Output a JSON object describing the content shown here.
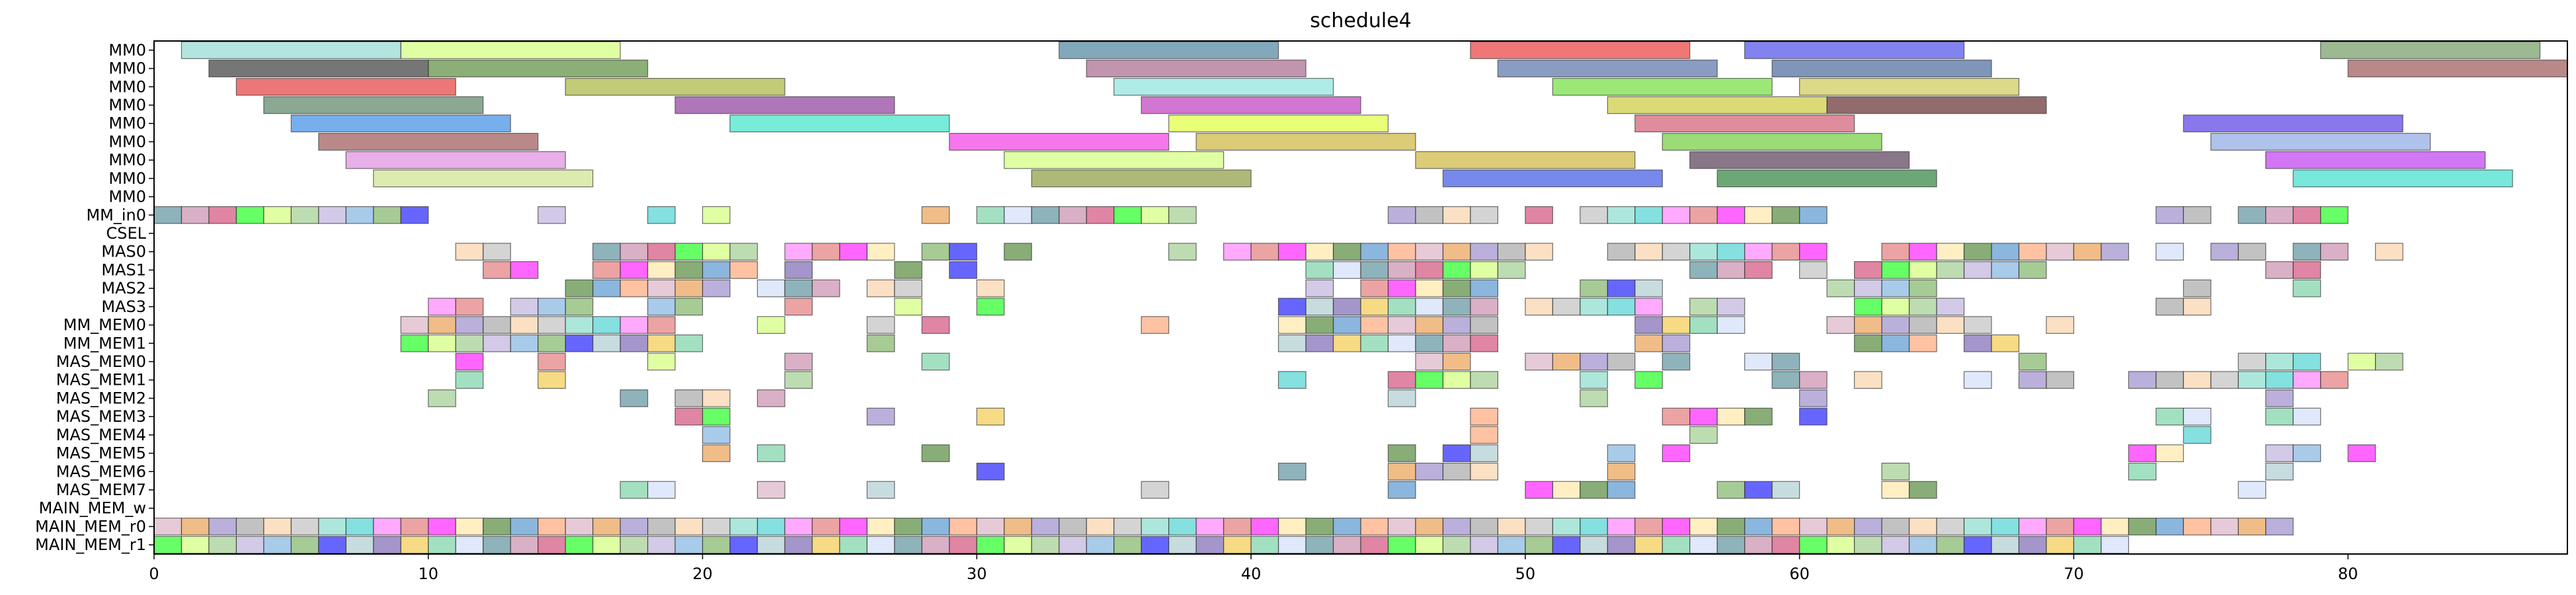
{
  "chart_data": {
    "type": "gantt",
    "title": "schedule4",
    "xlabel": "",
    "ylabel": "",
    "xlim": [
      0,
      88
    ],
    "xticks": [
      0,
      10,
      20,
      30,
      40,
      50,
      60,
      70,
      80
    ],
    "grid": false,
    "rows": [
      "MM0",
      "MM0",
      "MM0",
      "MM0",
      "MM0",
      "MM0",
      "MM0",
      "MM0",
      "MM0",
      "MM_in0",
      "CSEL",
      "MAS0",
      "MAS1",
      "MAS2",
      "MAS3",
      "MM_MEM0",
      "MM_MEM1",
      "MAS_MEM0",
      "MAS_MEM1",
      "MAS_MEM2",
      "MAS_MEM3",
      "MAS_MEM4",
      "MAS_MEM5",
      "MAS_MEM6",
      "MAS_MEM7",
      "MAIN_MEM_w",
      "MAIN_MEM_r0",
      "MAIN_MEM_r1"
    ],
    "palette": [
      "#e06666",
      "#6aa84f",
      "#3d85c6",
      "#f1c232",
      "#8e7cc3",
      "#c27ba0",
      "#76d7c4",
      "#93c47d",
      "#ff00ff",
      "#0000ff",
      "#ff9966",
      "#66cc99",
      "#999999",
      "#cc3366",
      "#33cccc",
      "#b4a7d6",
      "#ffe599",
      "#a2c4c9",
      "#d5a6bd",
      "#c9daf8",
      "#f9cb9c",
      "#00ff00",
      "#ff6fff",
      "#6fa8dc",
      "#38761d",
      "#674ea7",
      "#e69138",
      "#45818e",
      "#b7b7b7",
      "#ccff66"
    ],
    "bars": [
      {
        "row": 0,
        "start": 1,
        "end": 9,
        "color": "#7fd3c9"
      },
      {
        "row": 0,
        "start": 9,
        "end": 17,
        "color": "#ccff66"
      },
      {
        "row": 0,
        "start": 33,
        "end": 41,
        "color": "#2e6e8e"
      },
      {
        "row": 0,
        "start": 48,
        "end": 56,
        "color": "#e81c1c"
      },
      {
        "row": 0,
        "start": 58,
        "end": 66,
        "color": "#2f2fe6"
      },
      {
        "row": 0,
        "start": 79,
        "end": 87,
        "color": "#5c8a4a"
      },
      {
        "row": 1,
        "start": 2,
        "end": 10,
        "color": "#1a1a1a"
      },
      {
        "row": 1,
        "start": 10,
        "end": 18,
        "color": "#3d7a1c"
      },
      {
        "row": 1,
        "start": 34,
        "end": 42,
        "color": "#9a4e7a"
      },
      {
        "row": 1,
        "start": 49,
        "end": 57,
        "color": "#3d5a9a"
      },
      {
        "row": 1,
        "start": 59,
        "end": 67,
        "color": "#2a4e8a"
      },
      {
        "row": 1,
        "start": 80,
        "end": 88,
        "color": "#8a3a3a"
      },
      {
        "row": 2,
        "start": 3,
        "end": 11,
        "color": "#e01c1c"
      },
      {
        "row": 2,
        "start": 15,
        "end": 23,
        "color": "#9aa81c"
      },
      {
        "row": 2,
        "start": 35,
        "end": 43,
        "color": "#7ae0d8"
      },
      {
        "row": 2,
        "start": 51,
        "end": 59,
        "color": "#59d81c"
      },
      {
        "row": 2,
        "start": 60,
        "end": 68,
        "color": "#c4c23a"
      },
      {
        "row": 3,
        "start": 4,
        "end": 12,
        "color": "#3d6e4a"
      },
      {
        "row": 3,
        "start": 19,
        "end": 27,
        "color": "#7a1c8a"
      },
      {
        "row": 3,
        "start": 36,
        "end": 44,
        "color": "#b31cb3"
      },
      {
        "row": 3,
        "start": 53,
        "end": 61,
        "color": "#c4c21c"
      },
      {
        "row": 3,
        "start": 61,
        "end": 69,
        "color": "#4a0a0a"
      },
      {
        "row": 4,
        "start": 5,
        "end": 13,
        "color": "#1c7ae0"
      },
      {
        "row": 4,
        "start": 21,
        "end": 29,
        "color": "#1ce0c0"
      },
      {
        "row": 4,
        "start": 37,
        "end": 45,
        "color": "#d8ff1c"
      },
      {
        "row": 4,
        "start": 54,
        "end": 62,
        "color": "#c9405a"
      },
      {
        "row": 4,
        "start": 74,
        "end": 82,
        "color": "#3a1ce0"
      },
      {
        "row": 5,
        "start": 6,
        "end": 14,
        "color": "#8a3a3a"
      },
      {
        "row": 5,
        "start": 29,
        "end": 37,
        "color": "#f01ce0"
      },
      {
        "row": 5,
        "start": 38,
        "end": 46,
        "color": "#c4a81c"
      },
      {
        "row": 5,
        "start": 55,
        "end": 63,
        "color": "#59c41c"
      },
      {
        "row": 5,
        "start": 75,
        "end": 83,
        "color": "#7a9ae0"
      },
      {
        "row": 6,
        "start": 7,
        "end": 15,
        "color": "#d87ad8"
      },
      {
        "row": 6,
        "start": 31,
        "end": 39,
        "color": "#ccff66"
      },
      {
        "row": 6,
        "start": 46,
        "end": 54,
        "color": "#c4a81c"
      },
      {
        "row": 6,
        "start": 56,
        "end": 64,
        "color": "#3a1c3a"
      },
      {
        "row": 6,
        "start": 77,
        "end": 85,
        "color": "#b31cf0"
      },
      {
        "row": 7,
        "start": 8,
        "end": 16,
        "color": "#c4e07a"
      },
      {
        "row": 7,
        "start": 32,
        "end": 40,
        "color": "#7a8a1c"
      },
      {
        "row": 7,
        "start": 47,
        "end": 55,
        "color": "#1c3ae0"
      },
      {
        "row": 7,
        "start": 57,
        "end": 65,
        "color": "#0a6e1c"
      },
      {
        "row": 7,
        "start": 78,
        "end": 86,
        "color": "#1cd8c4"
      }
    ],
    "unit_rows": [
      {
        "row": 9,
        "starts": [
          0,
          1,
          2,
          3,
          4,
          5,
          6,
          7,
          8,
          9,
          14,
          18,
          20,
          28,
          30,
          31,
          32,
          33,
          34,
          35,
          36,
          37,
          45,
          46,
          47,
          48,
          50,
          52,
          53,
          54,
          55,
          56,
          57,
          58,
          59,
          60,
          73,
          74,
          76,
          77,
          78,
          79
        ]
      },
      {
        "row": 11,
        "starts": [
          11,
          12,
          16,
          17,
          18,
          19,
          20,
          21,
          23,
          24,
          25,
          26,
          28,
          29,
          31,
          37,
          39,
          40,
          41,
          42,
          43,
          44,
          45,
          46,
          47,
          48,
          49,
          50,
          53,
          54,
          55,
          56,
          57,
          58,
          59,
          60,
          63,
          64,
          65,
          66,
          67,
          68,
          69,
          70,
          71,
          73,
          75,
          76,
          78,
          79,
          81
        ]
      },
      {
        "row": 12,
        "starts": [
          12,
          13,
          16,
          17,
          18,
          19,
          20,
          21,
          23,
          27,
          29,
          42,
          43,
          44,
          45,
          46,
          47,
          48,
          49,
          56,
          57,
          58,
          60,
          62,
          63,
          64,
          65,
          66,
          67,
          68,
          77,
          78
        ]
      },
      {
        "row": 13,
        "starts": [
          15,
          16,
          17,
          18,
          19,
          20,
          22,
          23,
          24,
          26,
          27,
          30,
          42,
          44,
          45,
          46,
          47,
          48,
          52,
          53,
          54,
          61,
          62,
          63,
          64,
          74,
          78
        ]
      },
      {
        "row": 14,
        "starts": [
          10,
          11,
          13,
          14,
          15,
          18,
          19,
          23,
          27,
          30,
          41,
          42,
          43,
          44,
          45,
          46,
          47,
          48,
          50,
          51,
          52,
          53,
          54,
          56,
          57,
          62,
          63,
          64,
          65,
          73,
          74
        ]
      },
      {
        "row": 15,
        "starts": [
          9,
          10,
          11,
          12,
          13,
          14,
          15,
          16,
          17,
          18,
          22,
          26,
          28,
          36,
          41,
          42,
          43,
          44,
          45,
          46,
          47,
          48,
          54,
          55,
          56,
          57,
          61,
          62,
          63,
          64,
          65,
          66,
          69
        ]
      },
      {
        "row": 16,
        "starts": [
          9,
          10,
          11,
          12,
          13,
          14,
          15,
          16,
          17,
          18,
          19,
          26,
          41,
          42,
          43,
          44,
          45,
          46,
          47,
          48,
          54,
          55,
          62,
          63,
          64,
          66,
          67
        ]
      },
      {
        "row": 17,
        "starts": [
          11,
          14,
          18,
          23,
          28,
          46,
          47,
          50,
          51,
          52,
          53,
          55,
          58,
          59,
          68,
          76,
          77,
          78,
          80,
          81
        ]
      },
      {
        "row": 18,
        "starts": [
          11,
          14,
          23,
          41,
          45,
          46,
          47,
          48,
          52,
          54,
          59,
          60,
          62,
          66,
          68,
          69,
          72,
          73,
          74,
          75,
          76,
          77,
          78,
          79
        ]
      },
      {
        "row": 19,
        "starts": [
          10,
          17,
          19,
          20,
          22,
          45,
          52,
          60,
          77
        ]
      },
      {
        "row": 20,
        "starts": [
          19,
          20,
          26,
          30,
          48,
          55,
          56,
          57,
          58,
          60,
          73,
          74,
          77,
          78
        ]
      },
      {
        "row": 21,
        "starts": [
          20,
          48,
          56,
          74
        ]
      },
      {
        "row": 22,
        "starts": [
          20,
          22,
          28,
          45,
          47,
          48,
          53,
          55,
          72,
          73,
          77,
          78,
          80
        ]
      },
      {
        "row": 23,
        "starts": [
          30,
          41,
          45,
          46,
          47,
          48,
          53,
          63,
          72,
          77
        ]
      },
      {
        "row": 24,
        "starts": [
          17,
          18,
          22,
          26,
          36,
          45,
          50,
          51,
          52,
          53,
          57,
          58,
          59,
          63,
          64,
          76
        ]
      },
      {
        "row": 26,
        "starts": [
          0,
          1,
          2,
          3,
          4,
          5,
          6,
          7,
          8,
          9,
          10,
          11,
          12,
          13,
          14,
          15,
          16,
          17,
          18,
          19,
          20,
          21,
          22,
          23,
          24,
          25,
          26,
          27,
          28,
          29,
          30,
          31,
          32,
          33,
          34,
          35,
          36,
          37,
          38,
          39,
          40,
          41,
          42,
          43,
          44,
          45,
          46,
          47,
          48,
          49,
          50,
          51,
          52,
          53,
          54,
          55,
          56,
          57,
          58,
          59,
          60,
          61,
          62,
          63,
          64,
          65,
          66,
          67,
          68,
          69,
          70,
          71,
          72,
          73,
          74,
          75,
          76,
          77
        ]
      },
      {
        "row": 27,
        "starts": [
          0,
          1,
          2,
          3,
          4,
          5,
          6,
          7,
          8,
          9,
          10,
          11,
          12,
          13,
          14,
          15,
          16,
          17,
          18,
          19,
          20,
          21,
          22,
          23,
          24,
          25,
          26,
          27,
          28,
          29,
          30,
          31,
          32,
          33,
          34,
          35,
          36,
          37,
          38,
          39,
          40,
          41,
          42,
          43,
          44,
          45,
          46,
          47,
          48,
          49,
          50,
          51,
          52,
          53,
          54,
          55,
          56,
          57,
          58,
          59,
          60,
          61,
          62,
          63,
          64,
          65,
          66,
          67,
          68,
          69,
          70,
          71
        ]
      }
    ]
  }
}
